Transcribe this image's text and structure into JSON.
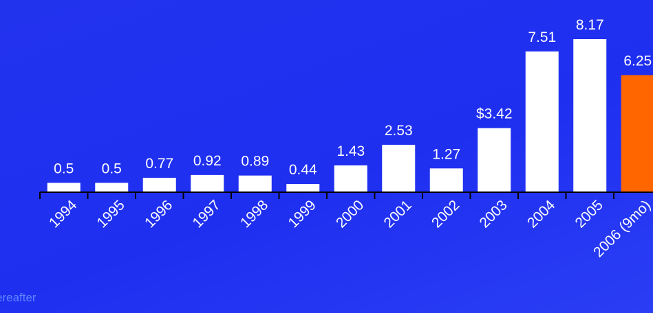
{
  "chart_data": {
    "type": "bar",
    "categories": [
      "1994",
      "1995",
      "1996",
      "1997",
      "1998",
      "1999",
      "2000",
      "2001",
      "2002",
      "2003",
      "2004",
      "2005",
      "2006 (9mo)"
    ],
    "values": [
      0.5,
      0.5,
      0.77,
      0.92,
      0.89,
      0.44,
      1.43,
      2.53,
      1.27,
      3.42,
      7.51,
      8.17,
      6.25
    ],
    "value_labels": [
      "0.5",
      "0.5",
      "0.77",
      "0.92",
      "0.89",
      "0.44",
      "1.43",
      "2.53",
      "1.27",
      "$3.42",
      "7.51",
      "8.17",
      "6.25"
    ],
    "ylim": [
      0,
      8.17
    ],
    "grid": false,
    "legend": "none",
    "colors": {
      "bar": "#ffffff",
      "highlight_bar": "#ff6600",
      "axis": "#000000",
      "background": "#2233ee"
    },
    "highlight_index": 12
  },
  "footnote": "ereafter"
}
